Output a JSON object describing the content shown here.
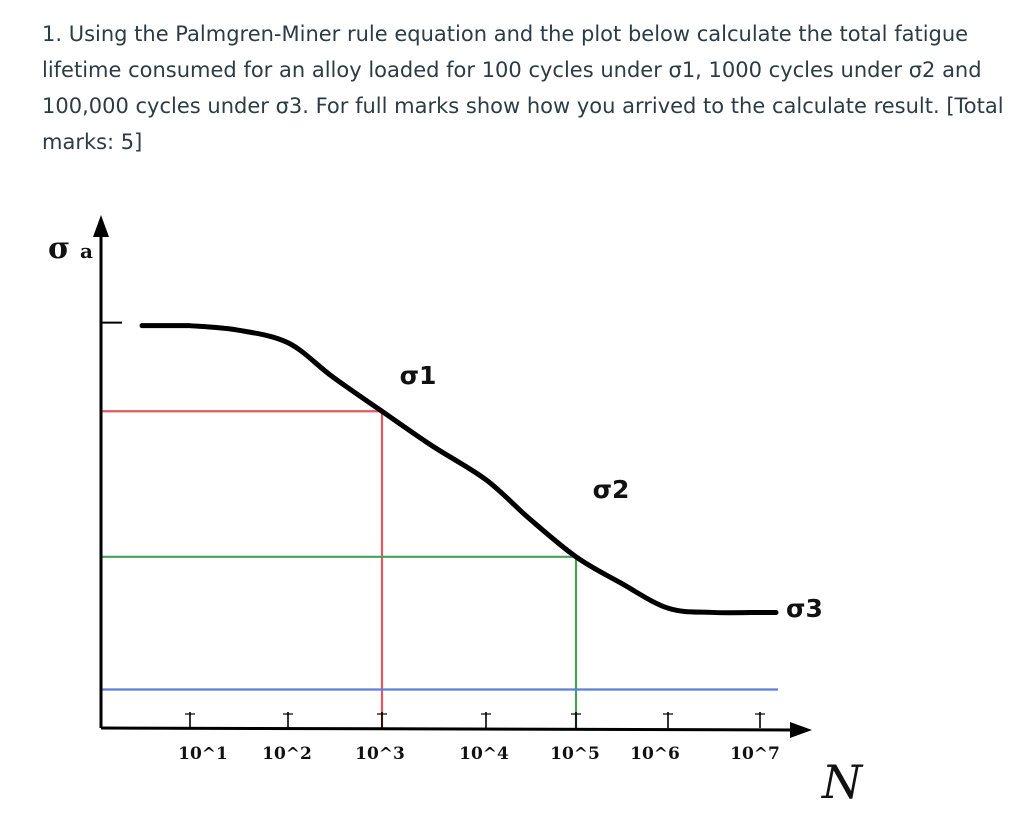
{
  "question": {
    "lines": [
      "1. Using the Palmgren-Miner rule equation and the plot below calculate the total fatigue",
      "lifetime consumed for an alloy loaded for 100 cycles under σ1, 1000 cycles under σ2 and",
      "100,000 cycles under σ3. For full marks show how you arrived to the calculate result. [Total",
      "marks: 5]"
    ]
  },
  "chart_data": {
    "type": "line",
    "title": "",
    "xlabel": "N",
    "ylabel_main": "σ",
    "ylabel_sub": "a",
    "x_scale": "log",
    "x_tick_labels": [
      "10^1",
      "10^2",
      "10^3",
      "10^4",
      "10^5",
      "10^6",
      "10^7"
    ],
    "grid": false,
    "series": [
      {
        "x": [
          10,
          30,
          100,
          300,
          1000,
          3000,
          10000,
          30000,
          100000,
          300000,
          1000000,
          3000000,
          10000000
        ],
        "y": [
          0.94,
          0.93,
          0.9,
          0.82,
          0.74,
          0.66,
          0.58,
          0.49,
          0.4,
          0.34,
          0.28,
          0.27,
          0.27
        ]
      }
    ],
    "stress_levels": [
      {
        "label": "σ1",
        "x": 1000,
        "y": 0.74,
        "color": "#e05a5e"
      },
      {
        "label": "σ2",
        "x": 100000,
        "y": 0.4,
        "color": "#4aa05a"
      },
      {
        "label": "σ3",
        "x": null,
        "y": 0.09,
        "color": "#5b7fdb"
      }
    ]
  }
}
